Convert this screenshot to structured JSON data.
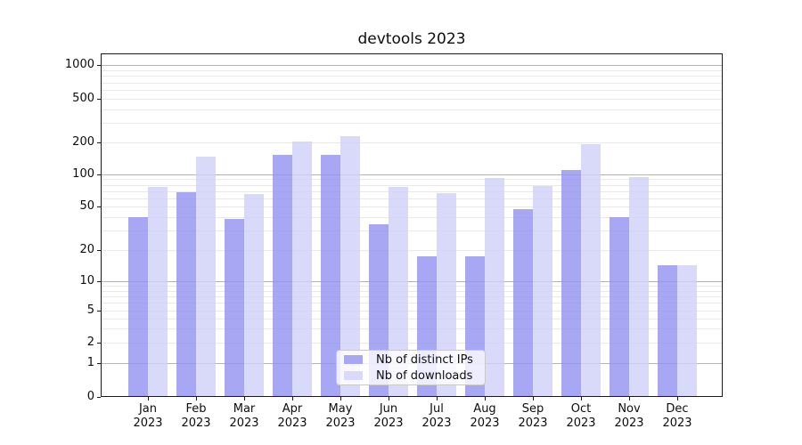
{
  "chart_data": {
    "type": "bar",
    "title": "devtools 2023",
    "categories": [
      "Jan",
      "Feb",
      "Mar",
      "Apr",
      "May",
      "Jun",
      "Jul",
      "Aug",
      "Sep",
      "Oct",
      "Nov",
      "Dec"
    ],
    "x_year_line": "2023",
    "series": [
      {
        "name": "Nb of distinct IPs",
        "color": "#a7a7f4",
        "values": [
          39,
          67,
          38,
          150,
          150,
          34,
          17,
          17,
          46,
          108,
          39,
          14
        ]
      },
      {
        "name": "Nb of downloads",
        "color": "#d9d9f9",
        "values": [
          75,
          145,
          64,
          200,
          225,
          75,
          66,
          90,
          76,
          190,
          92,
          14
        ]
      }
    ],
    "y_axis": {
      "scale": "symlog",
      "ticks": [
        0,
        1,
        2,
        5,
        10,
        20,
        50,
        100,
        200,
        500,
        1000
      ]
    },
    "legend": {
      "position": "lower center"
    },
    "grid": {
      "major_color": "#b4b4b4",
      "minor_color": "#e9e9e9"
    }
  }
}
